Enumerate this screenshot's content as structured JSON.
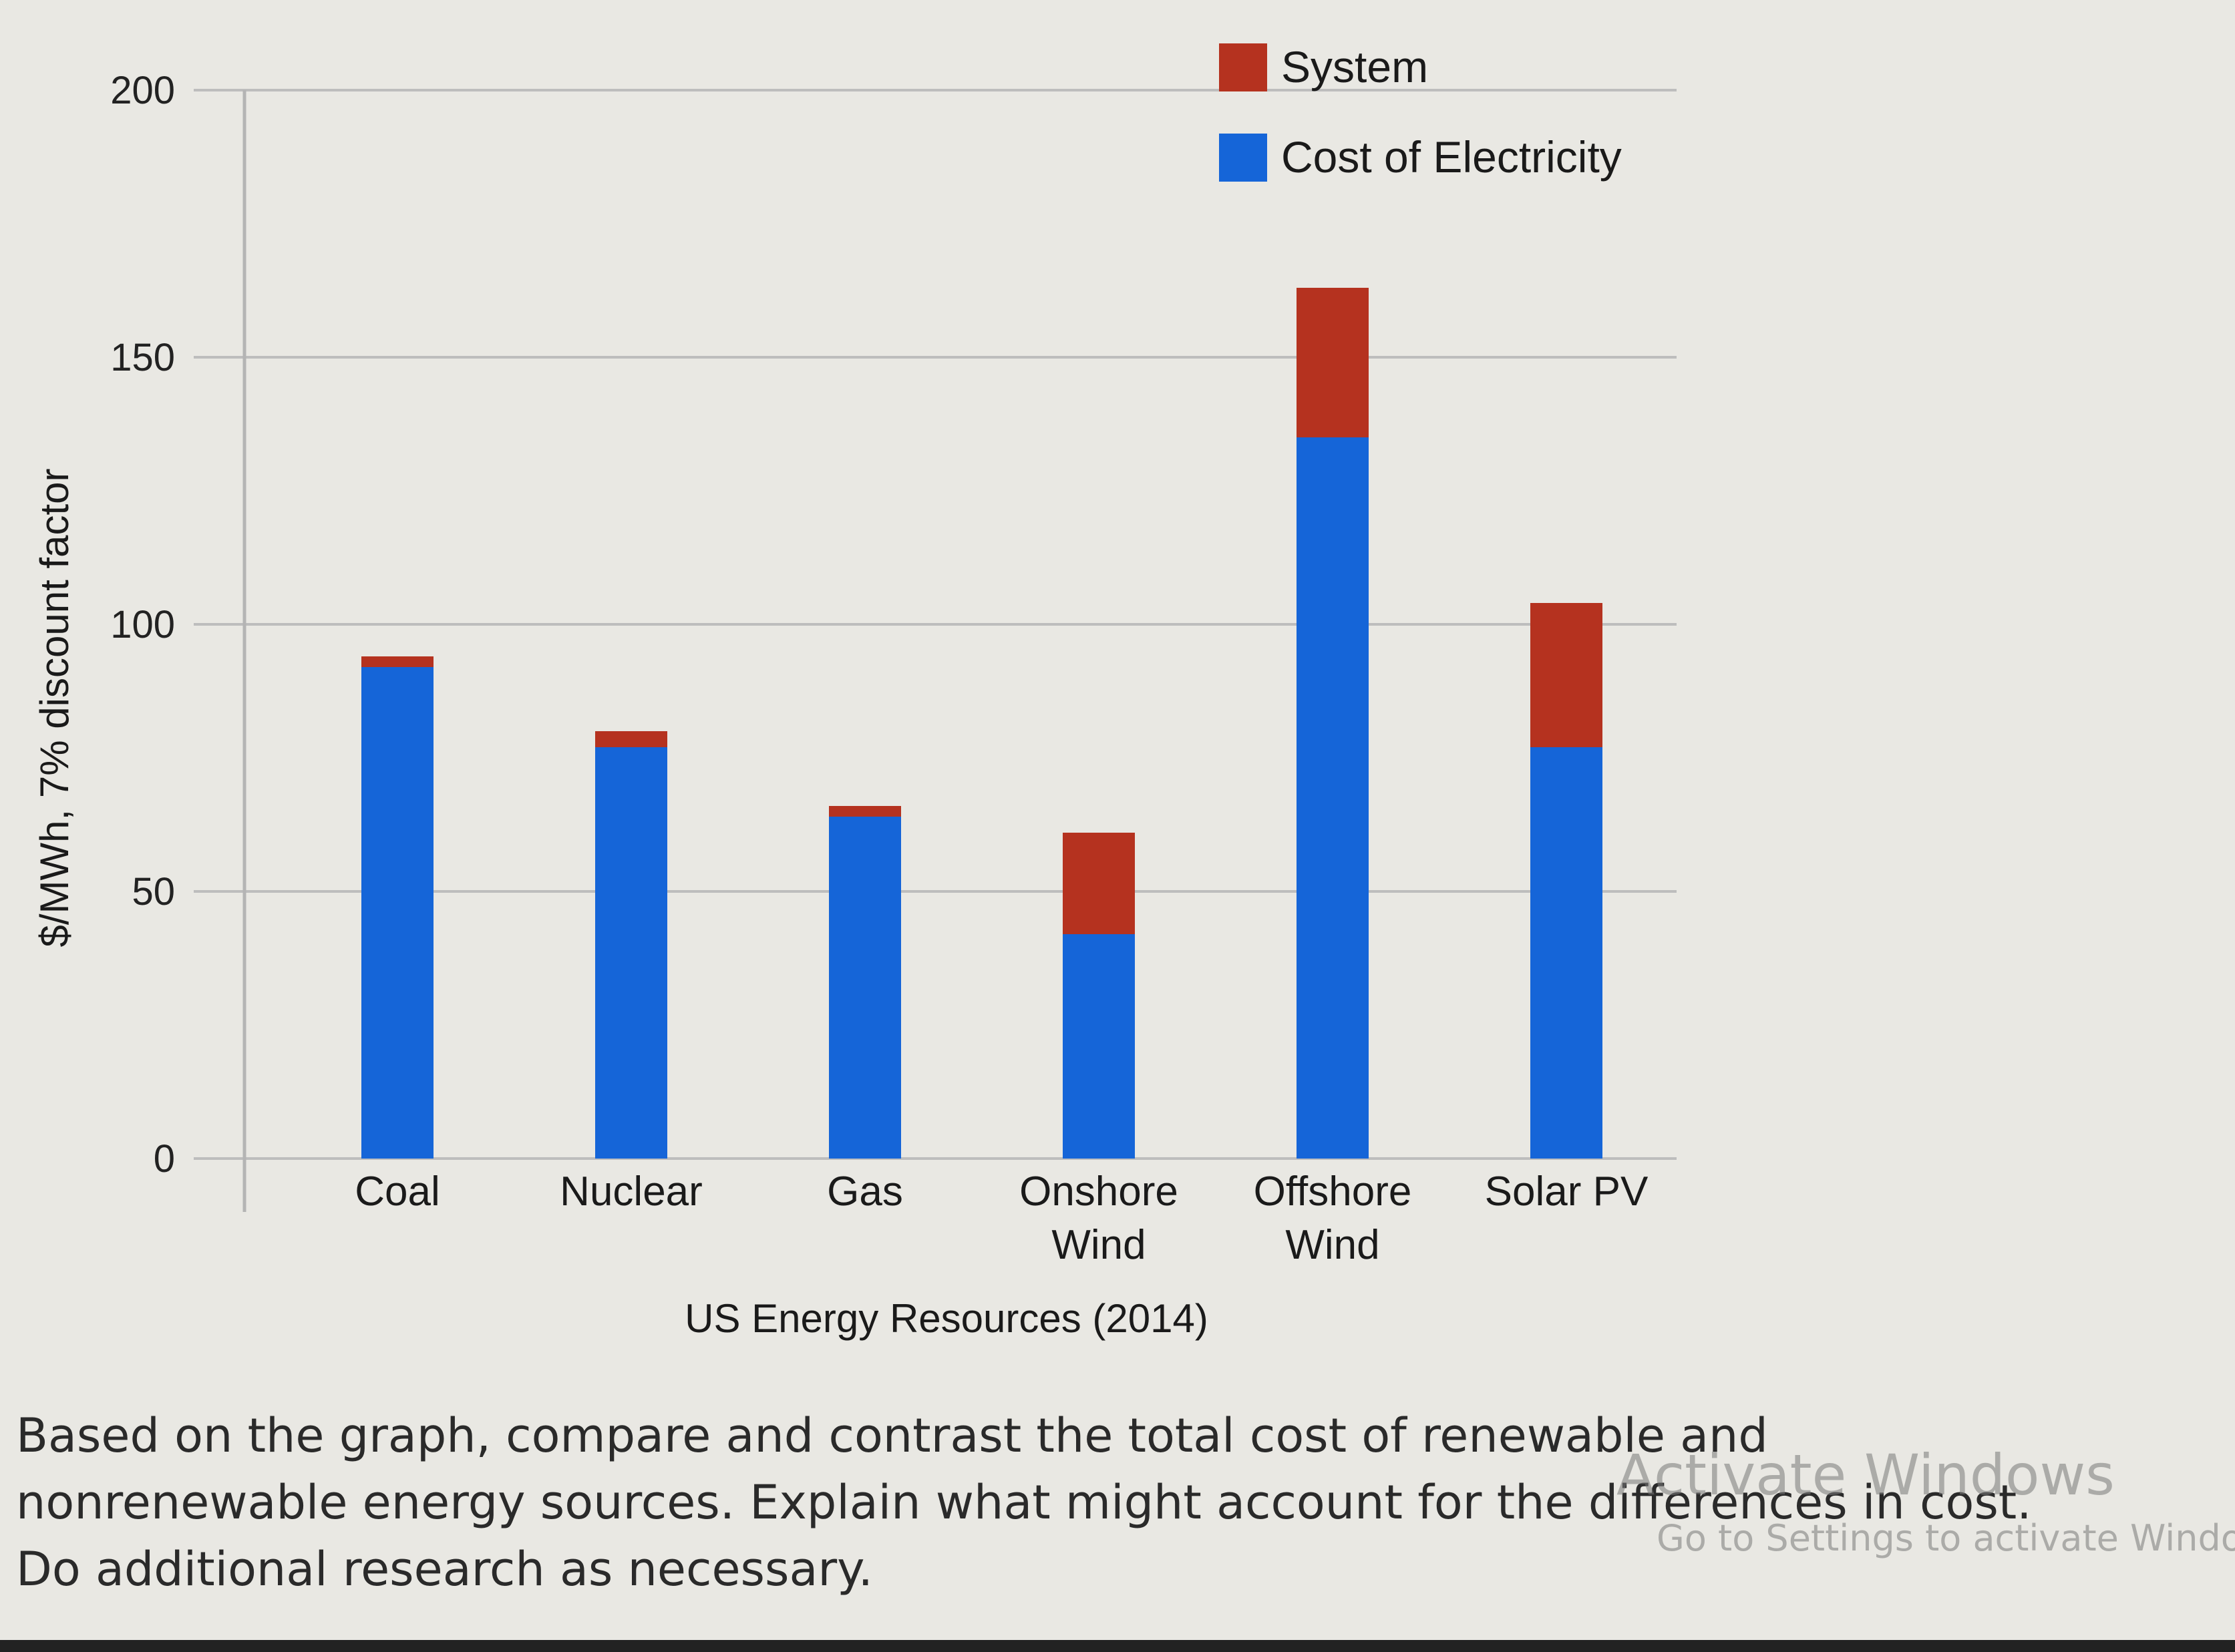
{
  "chart_data": {
    "type": "bar",
    "stacked": true,
    "categories": [
      [
        "Coal"
      ],
      [
        "Nuclear"
      ],
      [
        "Gas"
      ],
      [
        "Onshore",
        "Wind"
      ],
      [
        "Offshore",
        "Wind"
      ],
      [
        "Solar PV"
      ]
    ],
    "series": [
      {
        "name": "Cost of Electricity",
        "color": "#1565d8",
        "values": [
          92,
          77,
          64,
          42,
          135,
          77
        ]
      },
      {
        "name": "System",
        "color": "#b5321f",
        "values": [
          2,
          3,
          2,
          19,
          28,
          27
        ]
      }
    ],
    "xlabel": "US Energy Resources (2014)",
    "ylabel": "$/MWh, 7% discount factor",
    "ylim": [
      0,
      200
    ],
    "yticks": [
      0,
      50,
      100,
      150,
      200
    ],
    "grid": true,
    "legend_position": "top-right"
  },
  "question": {
    "lines": [
      "Based on the graph, compare and contrast the total cost of renewable and",
      "nonrenewable energy sources. Explain what might account for the differences in cost.",
      "Do additional research as necessary."
    ]
  },
  "watermark": {
    "title": "Activate Windows",
    "subtitle": "Go to Settings to activate Windows."
  }
}
